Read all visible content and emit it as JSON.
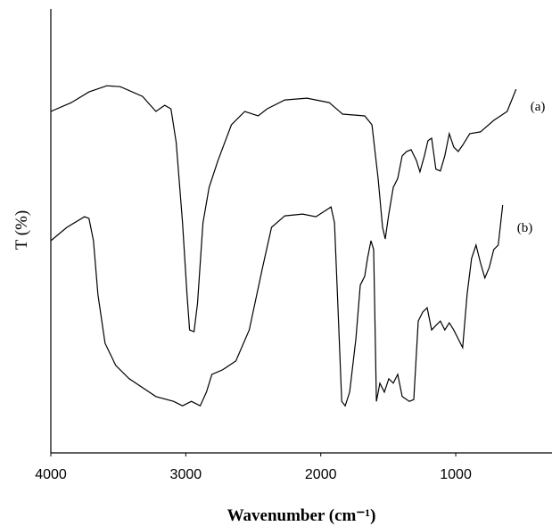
{
  "chart_data": {
    "type": "line",
    "xlabel": "Wavenumber (cm⁻¹)",
    "ylabel": "T (%)",
    "xlim": [
      4000,
      300
    ],
    "ylim": [
      0,
      100
    ],
    "xticks": [
      4000,
      3000,
      2000,
      1000
    ],
    "series": [
      {
        "name": "(a)",
        "color": "#000000",
        "x": [
          4000,
          3848,
          3717,
          3585,
          3486,
          3321,
          3222,
          3156,
          3110,
          3071,
          3024,
          2991,
          2972,
          2939,
          2913,
          2873,
          2827,
          2761,
          2662,
          2563,
          2464,
          2398,
          2266,
          2102,
          1937,
          1838,
          1674,
          1621,
          1575,
          1542,
          1522,
          1496,
          1463,
          1430,
          1397,
          1364,
          1331,
          1292,
          1265,
          1232,
          1206,
          1179,
          1147,
          1114,
          1081,
          1048,
          1015,
          982,
          949,
          896,
          817,
          718,
          619,
          553
        ],
        "values": [
          76.9,
          78.9,
          81.3,
          82.7,
          82.5,
          80.3,
          76.9,
          78.3,
          77.5,
          69.9,
          51.8,
          35.7,
          27.7,
          27.3,
          33.7,
          51.8,
          59.8,
          65.9,
          73.9,
          76.9,
          75.9,
          77.5,
          79.5,
          79.9,
          78.9,
          76.3,
          75.9,
          73.9,
          61.8,
          50.8,
          48.2,
          53.8,
          59.8,
          61.8,
          66.9,
          67.9,
          68.3,
          65.9,
          63.3,
          66.9,
          70.3,
          70.9,
          63.9,
          63.5,
          66.9,
          71.9,
          68.9,
          67.9,
          69.3,
          71.9,
          72.3,
          74.9,
          76.9,
          81.9
        ]
      },
      {
        "name": "(b)",
        "color": "#000000",
        "x": [
          4000,
          3881,
          3750,
          3717,
          3684,
          3651,
          3598,
          3519,
          3420,
          3321,
          3222,
          3091,
          3024,
          2959,
          2893,
          2847,
          2807,
          2728,
          2629,
          2530,
          2431,
          2365,
          2266,
          2134,
          2036,
          1924,
          1898,
          1871,
          1845,
          1819,
          1786,
          1740,
          1707,
          1674,
          1654,
          1628,
          1608,
          1588,
          1562,
          1529,
          1496,
          1463,
          1430,
          1397,
          1344,
          1311,
          1278,
          1245,
          1212,
          1179,
          1147,
          1114,
          1081,
          1048,
          1015,
          982,
          949,
          916,
          883,
          850,
          817,
          784,
          751,
          718,
          685,
          652
        ],
        "values": [
          47.8,
          50.8,
          53.2,
          52.8,
          47.8,
          35.7,
          24.7,
          19.7,
          16.7,
          14.7,
          12.7,
          11.6,
          10.6,
          11.6,
          10.6,
          13.7,
          17.7,
          18.7,
          20.7,
          27.7,
          41.8,
          50.8,
          53.4,
          53.8,
          53.2,
          55.4,
          51.8,
          31.7,
          11.6,
          10.6,
          13.7,
          25.7,
          37.8,
          39.8,
          43.8,
          47.8,
          45.8,
          11.6,
          15.7,
          13.7,
          16.7,
          15.7,
          17.7,
          12.7,
          11.6,
          12.0,
          29.7,
          31.7,
          32.7,
          27.7,
          28.7,
          29.7,
          27.7,
          29.3,
          27.7,
          25.7,
          23.7,
          35.7,
          43.8,
          46.8,
          42.8,
          39.4,
          41.8,
          45.8,
          46.8,
          55.8
        ]
      }
    ]
  }
}
